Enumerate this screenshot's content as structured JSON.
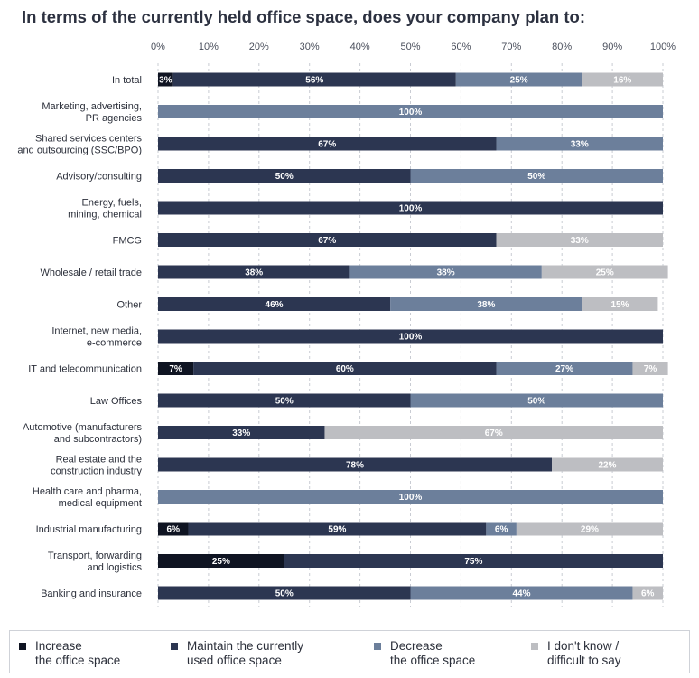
{
  "chart_data": {
    "type": "bar",
    "orientation": "horizontal",
    "stacked": true,
    "title": "In terms of the currently held office space, does your company plan to:",
    "xlim": [
      0,
      100
    ],
    "xticks": [
      "0%",
      "10%",
      "20%",
      "30%",
      "40%",
      "50%",
      "60%",
      "70%",
      "80%",
      "90%",
      "100%"
    ],
    "grid": "vertical dashed",
    "legend_position": "bottom",
    "categories": [
      "In total",
      "Marketing, advertising,\nPR agencies",
      "Shared services centers\nand outsourcing (SSC/BPO)",
      "Advisory/consulting",
      "Energy, fuels,\nmining, chemical",
      "FMCG",
      "Wholesale / retail trade",
      "Other",
      "Internet, new media,\ne-commerce",
      "IT and telecommunication",
      "Law Offices",
      "Automotive (manufacturers\nand subcontractors)",
      "Real estate and the\nconstruction industry",
      "Health care and pharma,\nmedical equipment",
      "Industrial manufacturing",
      "Transport, forwarding\nand logistics",
      "Banking and insurance"
    ],
    "series": [
      {
        "name": "Increase\nthe office space",
        "color": "#0f1422",
        "values": [
          3,
          0,
          0,
          0,
          0,
          0,
          0,
          0,
          0,
          7,
          0,
          0,
          0,
          0,
          6,
          25,
          0
        ]
      },
      {
        "name": "Maintain the currently\nused office space",
        "color": "#2c3651",
        "values": [
          56,
          0,
          67,
          50,
          100,
          67,
          38,
          46,
          100,
          60,
          50,
          33,
          78,
          0,
          59,
          75,
          50
        ]
      },
      {
        "name": "Decrease\nthe office space",
        "color": "#6c7f9b",
        "values": [
          25,
          100,
          33,
          50,
          0,
          0,
          38,
          38,
          0,
          27,
          50,
          0,
          0,
          100,
          6,
          0,
          44
        ]
      },
      {
        "name": "I don't know /\ndifficult to say",
        "color": "#bdbec2",
        "values": [
          16,
          0,
          0,
          0,
          0,
          33,
          25,
          15,
          0,
          7,
          0,
          67,
          22,
          0,
          29,
          0,
          6
        ]
      }
    ]
  }
}
